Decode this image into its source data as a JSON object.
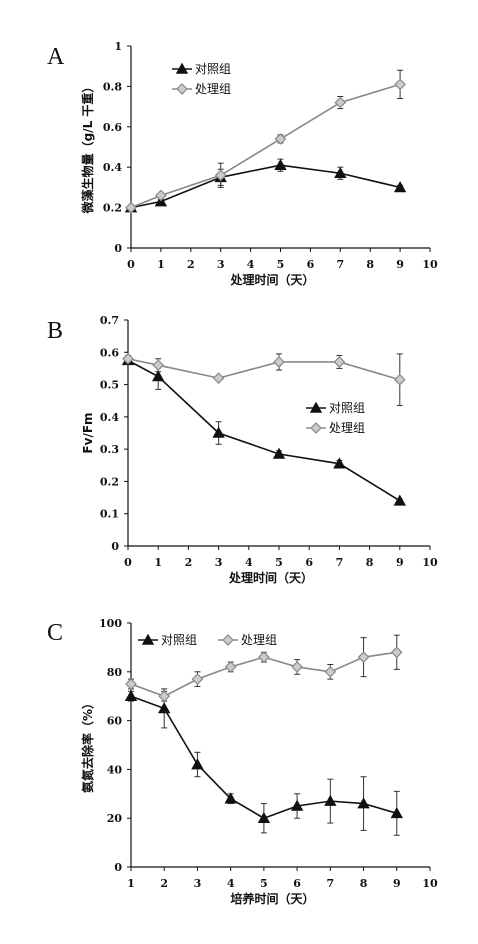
{
  "chart_data": [
    {
      "type": "line",
      "panel_label": "A",
      "xlabel": "处理时间（天）",
      "ylabel": "微藻生物量（g/L 干重）",
      "xlim": [
        0,
        10
      ],
      "ylim": [
        0,
        1
      ],
      "xticks": [
        0,
        1,
        2,
        3,
        4,
        5,
        6,
        7,
        8,
        9,
        10
      ],
      "yticks": [
        0,
        0.2,
        0.4,
        0.6,
        0.8,
        1
      ],
      "ytick_labels": [
        "0",
        "0.2",
        "0.4",
        "0.6",
        "0.8",
        "1"
      ],
      "legend_position": "top-center",
      "series": [
        {
          "name": "对照组",
          "marker": "triangle",
          "color": "#111111",
          "x": [
            0,
            1,
            3,
            5,
            7,
            9
          ],
          "y": [
            0.2,
            0.23,
            0.35,
            0.41,
            0.37,
            0.3
          ],
          "err": [
            0.01,
            0.01,
            0.04,
            0.03,
            0.03,
            0.01
          ]
        },
        {
          "name": "处理组",
          "marker": "diamond",
          "color": "#888888",
          "x": [
            0,
            1,
            3,
            5,
            7,
            9
          ],
          "y": [
            0.2,
            0.26,
            0.36,
            0.54,
            0.72,
            0.81
          ],
          "err": [
            0.01,
            0.01,
            0.06,
            0.02,
            0.03,
            0.07
          ]
        }
      ]
    },
    {
      "type": "line",
      "panel_label": "B",
      "xlabel": "处理时间（天）",
      "ylabel": "Fv/Fm",
      "xlim": [
        0,
        10
      ],
      "ylim": [
        0,
        0.7
      ],
      "xticks": [
        0,
        1,
        2,
        3,
        4,
        5,
        6,
        7,
        8,
        9,
        10
      ],
      "yticks": [
        0,
        0.1,
        0.2,
        0.3,
        0.4,
        0.5,
        0.6,
        0.7
      ],
      "ytick_labels": [
        "0",
        "0.1",
        "0.2",
        "0.3",
        "0.4",
        "0.5",
        "0.6",
        "0.7"
      ],
      "legend_position": "center-right",
      "series": [
        {
          "name": "对照组",
          "marker": "triangle",
          "color": "#111111",
          "x": [
            0,
            1,
            3,
            5,
            7,
            9
          ],
          "y": [
            0.575,
            0.525,
            0.35,
            0.285,
            0.255,
            0.14
          ],
          "err": [
            0.01,
            0.04,
            0.035,
            0.01,
            0.01,
            0.005
          ]
        },
        {
          "name": "处理组",
          "marker": "diamond",
          "color": "#888888",
          "x": [
            0,
            1,
            3,
            5,
            7,
            9
          ],
          "y": [
            0.58,
            0.56,
            0.52,
            0.57,
            0.57,
            0.515
          ],
          "err": [
            0.01,
            0.02,
            0.005,
            0.025,
            0.02,
            0.08
          ]
        }
      ]
    },
    {
      "type": "line",
      "panel_label": "C",
      "xlabel": "培养时间（天）",
      "ylabel": "氨氮去除率（%）",
      "xlim": [
        1,
        10
      ],
      "ylim": [
        0,
        100
      ],
      "xticks": [
        1,
        2,
        3,
        4,
        5,
        6,
        7,
        8,
        9,
        10
      ],
      "yticks": [
        0,
        20,
        40,
        60,
        80,
        100
      ],
      "ytick_labels": [
        "0",
        "20",
        "40",
        "60",
        "80",
        "100"
      ],
      "legend_position": "top-left",
      "series": [
        {
          "name": "对照组",
          "marker": "triangle",
          "color": "#111111",
          "x": [
            1,
            2,
            3,
            4,
            5,
            6,
            7,
            8,
            9
          ],
          "y": [
            70,
            65,
            42,
            28,
            20,
            25,
            27,
            26,
            22
          ],
          "err": [
            2,
            8,
            5,
            2,
            6,
            5,
            9,
            11,
            9
          ]
        },
        {
          "name": "处理组",
          "marker": "diamond",
          "color": "#888888",
          "x": [
            1,
            2,
            3,
            4,
            5,
            6,
            7,
            8,
            9
          ],
          "y": [
            75,
            70,
            77,
            82,
            86,
            82,
            80,
            86,
            88
          ],
          "err": [
            2,
            2,
            3,
            2,
            2,
            3,
            3,
            8,
            7
          ]
        }
      ]
    }
  ]
}
